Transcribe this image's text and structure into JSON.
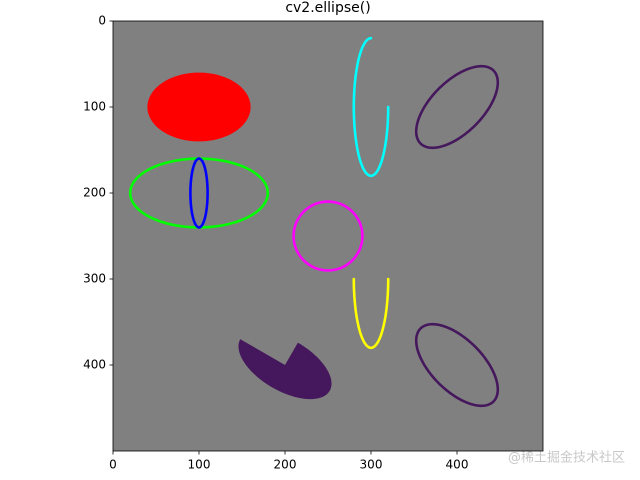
{
  "chart_data": {
    "type": "image",
    "title": "cv2.ellipse()",
    "background": "#808080",
    "xlim": [
      0,
      500
    ],
    "ylim": [
      500,
      0
    ],
    "xticks": [
      0,
      100,
      200,
      300,
      400
    ],
    "yticks": [
      0,
      100,
      200,
      300,
      400
    ],
    "shapes": [
      {
        "center": [
          100,
          100
        ],
        "axes": [
          60,
          40
        ],
        "angle": 0,
        "start": 0,
        "end": 360,
        "color": "#ff0000",
        "thickness": -1
      },
      {
        "center": [
          100,
          200
        ],
        "axes": [
          80,
          40
        ],
        "angle": 0,
        "start": 0,
        "end": 360,
        "color": "#00ff00",
        "thickness": 3
      },
      {
        "center": [
          100,
          200
        ],
        "axes": [
          10,
          40
        ],
        "angle": 0,
        "start": 0,
        "end": 360,
        "color": "#0000ff",
        "thickness": 3
      },
      {
        "center": [
          250,
          250
        ],
        "axes": [
          40,
          40
        ],
        "angle": 0,
        "start": 0,
        "end": 360,
        "color": "#ff00ff",
        "thickness": 3
      },
      {
        "center": [
          300,
          100
        ],
        "axes": [
          20,
          80
        ],
        "angle": 0,
        "start": 0,
        "end": 270,
        "color": "#00ffff",
        "thickness": 3
      },
      {
        "center": [
          300,
          300
        ],
        "axes": [
          20,
          80
        ],
        "angle": 0,
        "start": 0,
        "end": 180,
        "color": "#ffff00",
        "thickness": 3
      },
      {
        "center": [
          400,
          100
        ],
        "axes": [
          60,
          30
        ],
        "angle": -45,
        "start": 0,
        "end": 360,
        "color": "#45175c",
        "thickness": 3
      },
      {
        "center": [
          400,
          400
        ],
        "axes": [
          60,
          30
        ],
        "angle": 45,
        "start": 0,
        "end": 360,
        "color": "#45175c",
        "thickness": 3
      },
      {
        "center": [
          200,
          400
        ],
        "axes": [
          60,
          30
        ],
        "angle": 30,
        "start": -90,
        "end": 180,
        "color": "#45175c",
        "thickness": -1
      }
    ]
  },
  "watermark": "@稀土掘金技术社区"
}
